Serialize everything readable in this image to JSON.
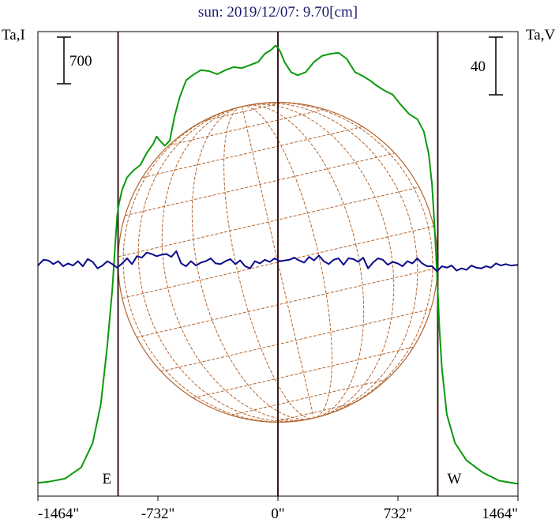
{
  "chart_data": {
    "type": "line",
    "title": "sun: 2019/12/07: 9.70[cm]",
    "left_axis_label": "Ta,I",
    "right_axis_label": "Ta,V",
    "left_scale_bar_label": "700",
    "left_scale_bar_value": 700,
    "right_scale_bar_label": "40",
    "right_scale_bar_value": 40,
    "x_unit": "arcsec",
    "xlim": [
      -1464,
      1464
    ],
    "x_ticks": [
      {
        "value": -1464,
        "label": "-1464\""
      },
      {
        "value": -732,
        "label": "-732\""
      },
      {
        "value": 0,
        "label": "0\""
      },
      {
        "value": 732,
        "label": "732\""
      },
      {
        "value": 1464,
        "label": "1464\""
      }
    ],
    "limb_markers": [
      {
        "value": -975,
        "label": "E"
      },
      {
        "value": 0,
        "label": ""
      },
      {
        "value": 975,
        "label": "W"
      }
    ],
    "solar_radius_arcsec": 975,
    "grid": false,
    "colors": {
      "title": "#1a1a6e",
      "intensity": "#0a9a0a",
      "polarization": "#0a0a8c",
      "limb_lines": "#3a1a1a",
      "disk_grid": "#b5652d",
      "frame": "#000000"
    },
    "series": [
      {
        "key": "intensity",
        "x": [
          -1464,
          -1400,
          -1300,
          -1200,
          -1130,
          -1080,
          -1040,
          -1010,
          -990,
          -980,
          -970,
          -950,
          -920,
          -880,
          -840,
          -800,
          -760,
          -740,
          -720,
          -690,
          -660,
          -630,
          -600,
          -560,
          -520,
          -470,
          -420,
          -370,
          -320,
          -270,
          -220,
          -170,
          -120,
          -80,
          -40,
          -15,
          0,
          15,
          40,
          80,
          120,
          170,
          220,
          270,
          320,
          370,
          420,
          470,
          520,
          560,
          600,
          650,
          700,
          750,
          800,
          850,
          890,
          920,
          940,
          955,
          965,
          975,
          985,
          1000,
          1030,
          1080,
          1150,
          1250,
          1350,
          1464
        ],
        "y": [
          30,
          40,
          70,
          180,
          420,
          800,
          1380,
          1930,
          2420,
          2650,
          2760,
          2900,
          3020,
          3090,
          3140,
          3260,
          3350,
          3420,
          3380,
          3330,
          3380,
          3620,
          3800,
          3970,
          4020,
          4070,
          4060,
          4030,
          4070,
          4100,
          4090,
          4120,
          4150,
          4230,
          4270,
          4310,
          4290,
          4250,
          4150,
          4050,
          4020,
          4050,
          4150,
          4210,
          4230,
          4240,
          4180,
          4050,
          4010,
          3970,
          3920,
          3870,
          3830,
          3730,
          3640,
          3590,
          3470,
          3250,
          2950,
          2550,
          2250,
          1900,
          1550,
          1150,
          700,
          420,
          250,
          130,
          50,
          20
        ]
      },
      {
        "key": "polarization",
        "x": [
          -1464,
          -1430,
          -1400,
          -1370,
          -1340,
          -1310,
          -1280,
          -1250,
          -1220,
          -1190,
          -1160,
          -1130,
          -1100,
          -1070,
          -1040,
          -1010,
          -980,
          -950,
          -920,
          -890,
          -860,
          -830,
          -800,
          -770,
          -740,
          -710,
          -680,
          -650,
          -620,
          -590,
          -560,
          -530,
          -500,
          -470,
          -440,
          -410,
          -380,
          -350,
          -320,
          -290,
          -260,
          -230,
          -200,
          -170,
          -140,
          -110,
          -80,
          -50,
          -20,
          10,
          40,
          70,
          100,
          130,
          160,
          190,
          220,
          250,
          280,
          310,
          340,
          370,
          400,
          430,
          460,
          490,
          520,
          550,
          580,
          610,
          640,
          670,
          700,
          730,
          760,
          790,
          820,
          850,
          880,
          910,
          940,
          970,
          1000,
          1030,
          1060,
          1090,
          1120,
          1150,
          1180,
          1210,
          1240,
          1270,
          1300,
          1330,
          1360,
          1390,
          1420,
          1464
        ],
        "y": [
          0.5,
          4.5,
          4.0,
          1.5,
          3.5,
          0.0,
          2.0,
          0.5,
          3.5,
          0.0,
          5.0,
          3.0,
          -1.5,
          0.5,
          3.5,
          1.5,
          -1.0,
          2.0,
          5.5,
          1.5,
          7.0,
          6.0,
          9.5,
          8.5,
          7.0,
          8.0,
          8.5,
          6.5,
          10.5,
          2.0,
          0.0,
          3.5,
          0.5,
          2.5,
          3.5,
          5.5,
          2.0,
          1.5,
          3.5,
          5.0,
          1.5,
          4.0,
          0.0,
          -1.5,
          3.5,
          2.0,
          4.5,
          3.0,
          5.5,
          3.5,
          4.0,
          4.5,
          6.0,
          4.0,
          2.5,
          6.5,
          4.0,
          7.5,
          3.5,
          1.5,
          4.5,
          5.5,
          1.0,
          5.5,
          5.0,
          3.0,
          6.0,
          -1.5,
          2.5,
          5.5,
          4.5,
          1.0,
          3.0,
          2.0,
          0.0,
          3.5,
          2.0,
          5.5,
          2.0,
          0.0,
          0.0,
          -3.5,
          0.0,
          -1.0,
          0.5,
          -3.0,
          -1.5,
          -2.5,
          0.5,
          -1.0,
          -1.5,
          0.0,
          -1.0,
          2.0,
          0.5,
          1.5,
          0.5,
          1.0
        ]
      }
    ]
  }
}
